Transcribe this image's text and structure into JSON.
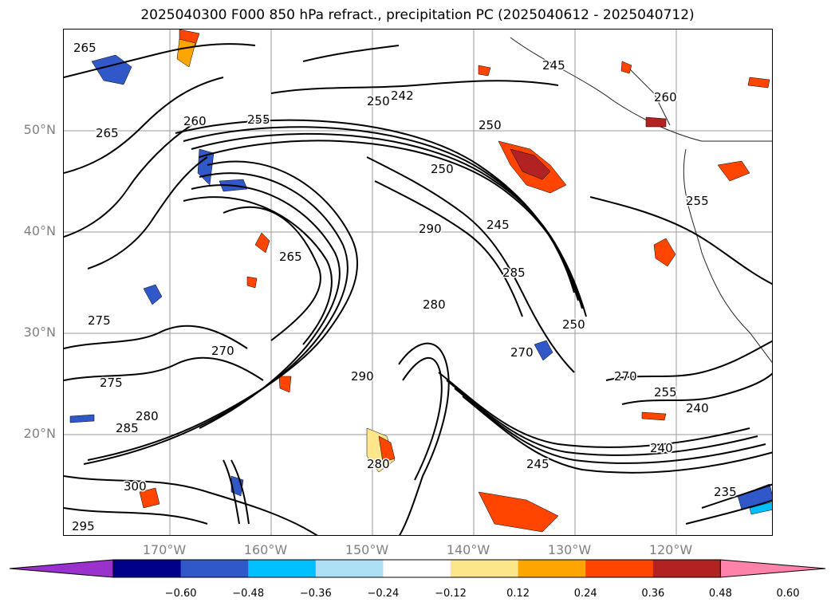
{
  "title": "2025040300 F000 850 hPa refract., precipitation PC (2025040612 - 2025040712)",
  "latitude_labels": [
    "50°N",
    "40°N",
    "30°N",
    "20°N"
  ],
  "longitude_labels": [
    "170°W",
    "160°W",
    "150°W",
    "140°W",
    "130°W",
    "120°W"
  ],
  "contour_labels": [
    "265",
    "255",
    "260",
    "265",
    "250",
    "242",
    "250",
    "250",
    "245",
    "285",
    "250",
    "270",
    "270",
    "255",
    "240",
    "240",
    "245",
    "235",
    "295",
    "300",
    "285",
    "280",
    "275",
    "280",
    "290",
    "270",
    "275",
    "265",
    "290",
    "280",
    "245",
    "255",
    "260"
  ],
  "colorbar": {
    "ticks": [
      "−0.60",
      "−0.48",
      "−0.36",
      "−0.24",
      "−0.12",
      "0.12",
      "0.24",
      "0.36",
      "0.48",
      "0.60"
    ],
    "colors": [
      "#9932CC",
      "#00008B",
      "#3158C8",
      "#00BFFF",
      "#ADDFF5",
      "#FFFFFF",
      "#FCE68A",
      "#FFA500",
      "#FF4500",
      "#B22222",
      "#FF82AB"
    ]
  }
}
